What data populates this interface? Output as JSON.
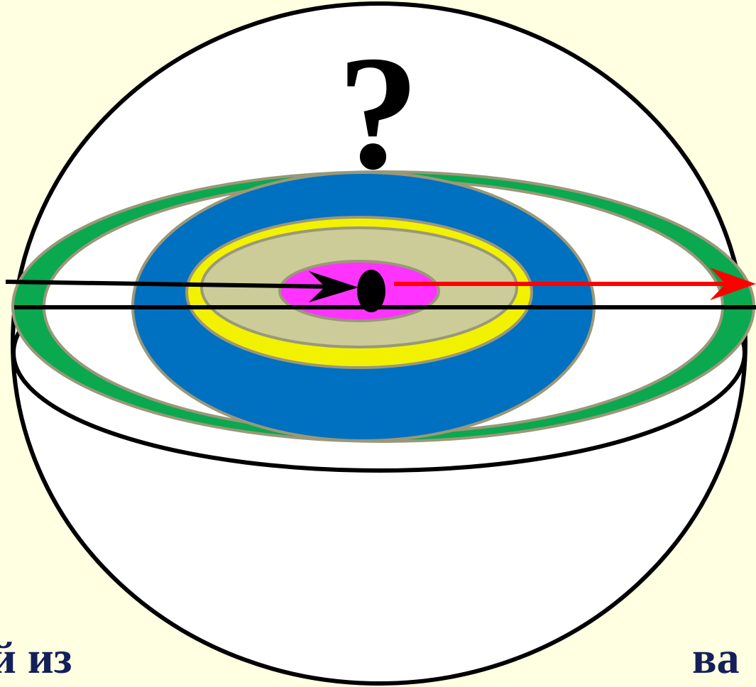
{
  "question_mark": "?",
  "captions": {
    "left": "й из",
    "right": "ва"
  }
}
